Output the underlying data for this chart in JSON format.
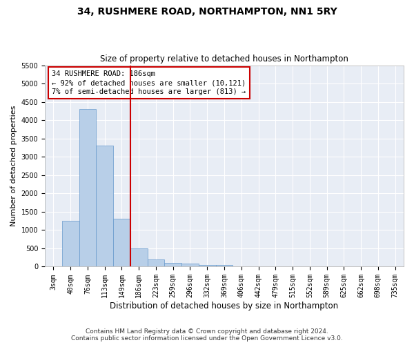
{
  "title": "34, RUSHMERE ROAD, NORTHAMPTON, NN1 5RY",
  "subtitle": "Size of property relative to detached houses in Northampton",
  "xlabel": "Distribution of detached houses by size in Northampton",
  "ylabel": "Number of detached properties",
  "footer_line1": "Contains HM Land Registry data © Crown copyright and database right 2024.",
  "footer_line2": "Contains public sector information licensed under the Open Government Licence v3.0.",
  "annotation_line1": "34 RUSHMERE ROAD: 186sqm",
  "annotation_line2": "← 92% of detached houses are smaller (10,121)",
  "annotation_line3": "7% of semi-detached houses are larger (813) →",
  "bar_color": "#b8cfe8",
  "bar_edge_color": "#6699cc",
  "vline_color": "#cc0000",
  "vline_x_index": 5,
  "categories": [
    "3sqm",
    "40sqm",
    "76sqm",
    "113sqm",
    "149sqm",
    "186sqm",
    "223sqm",
    "259sqm",
    "296sqm",
    "332sqm",
    "369sqm",
    "406sqm",
    "442sqm",
    "479sqm",
    "515sqm",
    "552sqm",
    "589sqm",
    "625sqm",
    "662sqm",
    "698sqm",
    "735sqm"
  ],
  "values": [
    0,
    1250,
    4300,
    3300,
    1300,
    500,
    200,
    100,
    75,
    50,
    50,
    0,
    0,
    0,
    0,
    0,
    0,
    0,
    0,
    0,
    0
  ],
  "ylim": [
    0,
    5500
  ],
  "yticks": [
    0,
    500,
    1000,
    1500,
    2000,
    2500,
    3000,
    3500,
    4000,
    4500,
    5000,
    5500
  ],
  "fig_bg_color": "#ffffff",
  "plot_bg_color": "#e8edf5",
  "grid_color": "#ffffff",
  "title_fontsize": 10,
  "subtitle_fontsize": 8.5,
  "xlabel_fontsize": 8.5,
  "ylabel_fontsize": 8,
  "tick_fontsize": 7,
  "annotation_fontsize": 7.5,
  "footer_fontsize": 6.5
}
